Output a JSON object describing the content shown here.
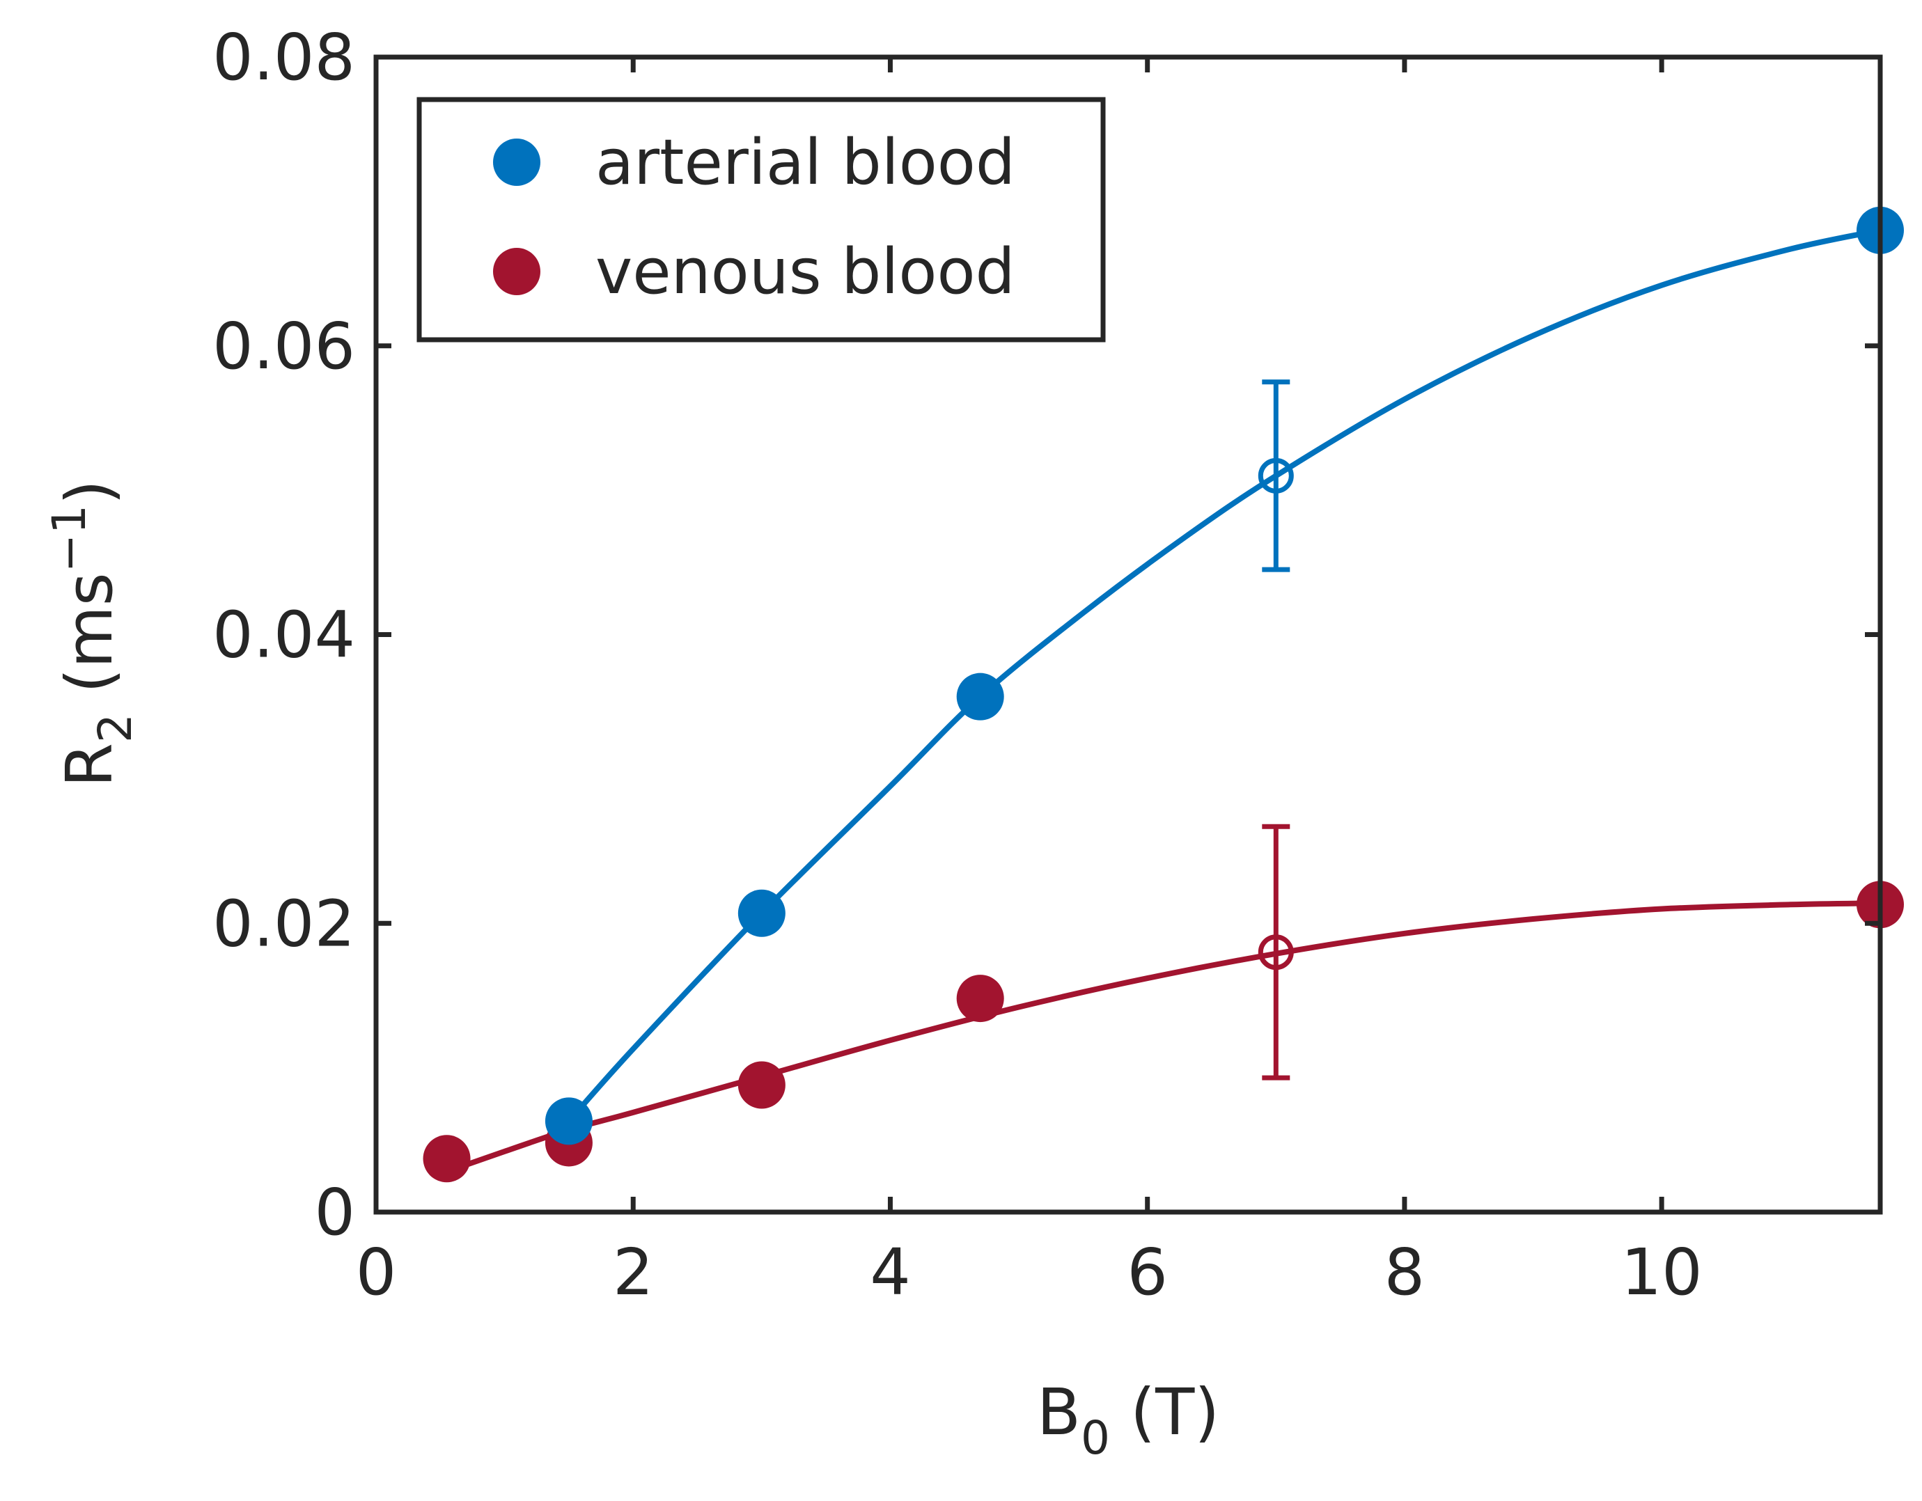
{
  "chart_data": {
    "type": "scatter",
    "title": "",
    "xlabel": {
      "main": "B",
      "sub": "0",
      "rest": " (T)"
    },
    "ylabel": {
      "main": "R",
      "sub": "2",
      "rest": " (ms",
      "sup": "−1",
      "close": ")"
    },
    "xlim": [
      0,
      11.7
    ],
    "ylim": [
      0,
      0.08
    ],
    "xticks": [
      {
        "value": 0,
        "label": "0"
      },
      {
        "value": 2,
        "label": "2"
      },
      {
        "value": 4,
        "label": "4"
      },
      {
        "value": 6,
        "label": "6"
      },
      {
        "value": 8,
        "label": "8"
      },
      {
        "value": 10,
        "label": "10"
      }
    ],
    "yticks": [
      {
        "value": 0,
        "label": "0"
      },
      {
        "value": 0.02,
        "label": "0.02"
      },
      {
        "value": 0.04,
        "label": "0.04"
      },
      {
        "value": 0.06,
        "label": "0.06"
      },
      {
        "value": 0.08,
        "label": "0.08"
      }
    ],
    "grid": false,
    "legend_position": "top-left",
    "series": [
      {
        "name": "arterial blood",
        "color": "#0072BD",
        "points": [
          {
            "x": 1.5,
            "y": 0.0063
          },
          {
            "x": 3.0,
            "y": 0.0207
          },
          {
            "x": 4.7,
            "y": 0.0357
          },
          {
            "x": 11.7,
            "y": 0.068
          }
        ],
        "open_point": {
          "x": 7.0,
          "y": 0.051,
          "err_low": 0.0445,
          "err_high": 0.0575
        },
        "fit": [
          {
            "x": 1.5,
            "y": 0.0063
          },
          {
            "x": 2.0,
            "y": 0.0113
          },
          {
            "x": 3.0,
            "y": 0.0207
          },
          {
            "x": 4.0,
            "y": 0.0295
          },
          {
            "x": 4.7,
            "y": 0.0357
          },
          {
            "x": 5.5,
            "y": 0.0415
          },
          {
            "x": 6.3,
            "y": 0.0468
          },
          {
            "x": 7.0,
            "y": 0.051
          },
          {
            "x": 8.0,
            "y": 0.0563
          },
          {
            "x": 9.0,
            "y": 0.0607
          },
          {
            "x": 10.0,
            "y": 0.0642
          },
          {
            "x": 11.0,
            "y": 0.0667
          },
          {
            "x": 11.7,
            "y": 0.068
          }
        ]
      },
      {
        "name": "venous blood",
        "color": "#A2142F",
        "points": [
          {
            "x": 0.55,
            "y": 0.0037
          },
          {
            "x": 1.5,
            "y": 0.0048
          },
          {
            "x": 3.0,
            "y": 0.0088
          },
          {
            "x": 4.7,
            "y": 0.0148
          },
          {
            "x": 11.7,
            "y": 0.0213
          }
        ],
        "open_point": {
          "x": 7.0,
          "y": 0.018,
          "err_low": 0.0093,
          "err_high": 0.0267
        },
        "fit": [
          {
            "x": 0.55,
            "y": 0.0028
          },
          {
            "x": 1.0,
            "y": 0.0042
          },
          {
            "x": 1.5,
            "y": 0.0057
          },
          {
            "x": 2.0,
            "y": 0.0069
          },
          {
            "x": 3.0,
            "y": 0.0094
          },
          {
            "x": 4.0,
            "y": 0.0119
          },
          {
            "x": 5.0,
            "y": 0.0142
          },
          {
            "x": 6.0,
            "y": 0.0162
          },
          {
            "x": 7.0,
            "y": 0.0179
          },
          {
            "x": 8.0,
            "y": 0.0193
          },
          {
            "x": 9.0,
            "y": 0.0203
          },
          {
            "x": 10.0,
            "y": 0.021
          },
          {
            "x": 11.0,
            "y": 0.0213
          },
          {
            "x": 11.7,
            "y": 0.0214
          }
        ]
      }
    ]
  }
}
